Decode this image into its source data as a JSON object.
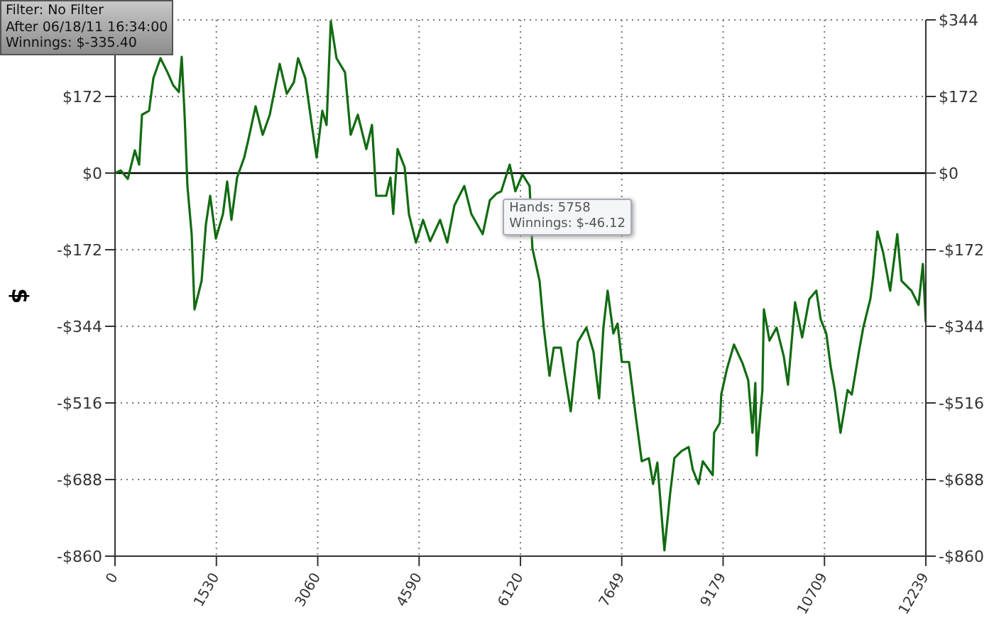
{
  "chart_data": {
    "type": "line",
    "ylabel": "$",
    "x": [
      0,
      86,
      193,
      300,
      364,
      407,
      514,
      579,
      686,
      793,
      879,
      964,
      1007,
      1050,
      1093,
      1157,
      1200,
      1307,
      1372,
      1436,
      1522,
      1629,
      1693,
      1757,
      1843,
      1950,
      2014,
      2122,
      2229,
      2336,
      2486,
      2593,
      2700,
      2764,
      2872,
      2979,
      3043,
      3129,
      3193,
      3257,
      3343,
      3472,
      3557,
      3665,
      3793,
      3879,
      3943,
      4093,
      4157,
      4200,
      4265,
      4372,
      4436,
      4543,
      4650,
      4757,
      4907,
      5015,
      5122,
      5272,
      5379,
      5550,
      5658,
      5758,
      5829,
      5958,
      6043,
      6150,
      6258,
      6300,
      6408,
      6472,
      6558,
      6622,
      6729,
      6793,
      6879,
      6986,
      7115,
      7222,
      7308,
      7372,
      7436,
      7522,
      7586,
      7651,
      7758,
      7865,
      7951,
      8058,
      8122,
      8186,
      8293,
      8379,
      8443,
      8551,
      8658,
      8722,
      8808,
      8872,
      9022,
      9043,
      9129,
      9151,
      9236,
      9343,
      9472,
      9558,
      9622,
      9665,
      9686,
      9772,
      9794,
      9879,
      9986,
      10094,
      10158,
      10265,
      10372,
      10479,
      10586,
      10651,
      10736,
      10801,
      10865,
      10951,
      11058,
      11122,
      11229,
      11294,
      11401,
      11444,
      11508,
      11594,
      11701,
      11808,
      11872,
      12022,
      12129,
      12194,
      12239
    ],
    "series": [
      {
        "color": "#126b12",
        "values": [
          0,
          6,
          -13,
          51,
          19,
          131,
          140,
          213,
          258,
          226,
          197,
          182,
          261,
          131,
          -29,
          -137,
          -306,
          -242,
          -115,
          -51,
          -147,
          -92,
          -19,
          -105,
          -10,
          35,
          76,
          150,
          86,
          131,
          245,
          178,
          204,
          258,
          213,
          99,
          35,
          140,
          108,
          341,
          258,
          226,
          86,
          131,
          54,
          108,
          -51,
          -51,
          -10,
          -92,
          54,
          13,
          -92,
          -156,
          -105,
          -153,
          -105,
          -156,
          -73,
          -29,
          -92,
          -137,
          -61,
          -46,
          -41,
          19,
          -41,
          -3,
          -29,
          -169,
          -242,
          -347,
          -455,
          -392,
          -392,
          -455,
          -535,
          -379,
          -347,
          -401,
          -506,
          -347,
          -264,
          -360,
          -338,
          -424,
          -424,
          -551,
          -647,
          -640,
          -698,
          -650,
          -847,
          -720,
          -640,
          -624,
          -615,
          -666,
          -698,
          -647,
          -678,
          -583,
          -561,
          -497,
          -440,
          -385,
          -427,
          -465,
          -583,
          -471,
          -634,
          -487,
          -306,
          -376,
          -347,
          -411,
          -475,
          -290,
          -369,
          -283,
          -264,
          -328,
          -360,
          -433,
          -487,
          -583,
          -487,
          -497,
          -401,
          -347,
          -283,
          -233,
          -131,
          -178,
          -264,
          -137,
          -242,
          -264,
          -296,
          -204,
          -335
        ]
      }
    ],
    "xlim": [
      0,
      12239
    ],
    "xticks": [
      0,
      1530,
      3060,
      4590,
      6120,
      7649,
      9179,
      10709,
      12239
    ],
    "ylim": [
      -860,
      344
    ],
    "yticks": [
      {
        "value": -860,
        "label": "-$860"
      },
      {
        "value": -688,
        "label": "-$688"
      },
      {
        "value": -516,
        "label": "-$516"
      },
      {
        "value": -344,
        "label": "-$344"
      },
      {
        "value": -172,
        "label": "-$172"
      },
      {
        "value": 0,
        "label": "$0"
      },
      {
        "value": 172,
        "label": "$172"
      },
      {
        "value": 344,
        "label": null
      }
    ],
    "y2lim": [
      -860,
      344
    ],
    "y2ticks": [
      {
        "value": -860,
        "label": "-$860"
      },
      {
        "value": -688,
        "label": "-$688"
      },
      {
        "value": -516,
        "label": "-$516"
      },
      {
        "value": -344,
        "label": "-$344"
      },
      {
        "value": -172,
        "label": "-$172"
      },
      {
        "value": 0,
        "label": "$0"
      },
      {
        "value": 172,
        "label": "$172"
      },
      {
        "value": 344,
        "label": "$344"
      }
    ],
    "ref_lines": [
      {
        "axis": "y",
        "value": 0,
        "color": "#000000",
        "line_style": "solid"
      }
    ],
    "grid": true,
    "legend": false,
    "marker": "none",
    "line_style": "solid",
    "annotations": [
      "Filter: No Filter",
      "After 06/18/11 16:34:00",
      "Winnings: $-335.40",
      {
        "text": "Hands: 5758\nWinnings: $-46.12",
        "x": 5758,
        "y": -46.12
      }
    ]
  }
}
